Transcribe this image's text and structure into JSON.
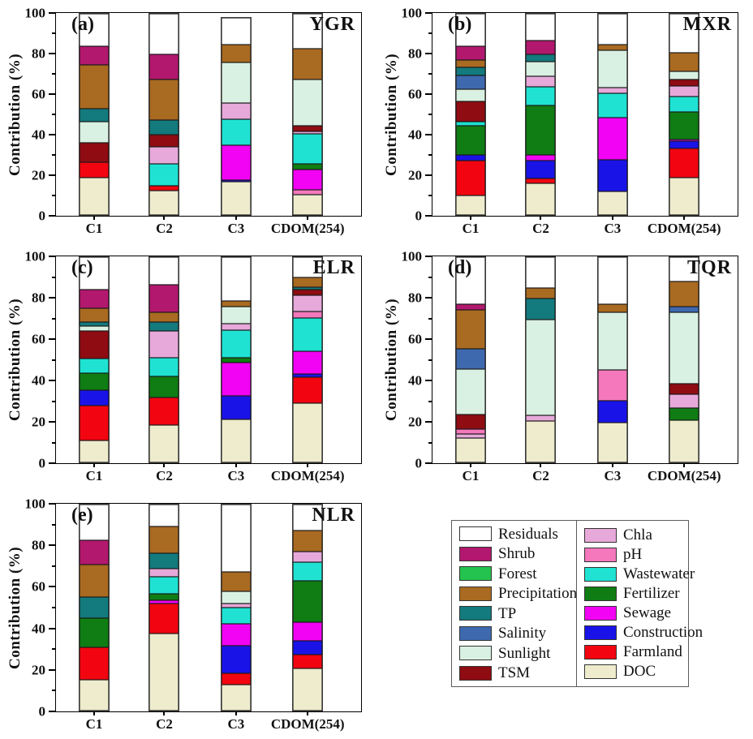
{
  "figure_title": "",
  "colors": {
    "Residuals": "#ffffff",
    "Shrub": "#b2186e",
    "Forest": "#24c24e",
    "Precipitation": "#a96a21",
    "TP": "#137a7d",
    "Salinity": "#3e69af",
    "Sunlight": "#d9f1e2",
    "TSM": "#8e0c12",
    "Chla": "#e7a9da",
    "pH": "#f478bb",
    "Wastewater": "#1fe2d2",
    "Fertilizer": "#0f7d13",
    "Sewage": "#f203f3",
    "Construction": "#1a13e8",
    "Farmland": "#f20510",
    "DOC": "#eeeccd"
  },
  "legend": {
    "left": [
      "Residuals",
      "Shrub",
      "Forest",
      "Precipitation",
      "TP",
      "Salinity",
      "Sunlight",
      "TSM"
    ],
    "right": [
      "Chla",
      "pH",
      "Wastewater",
      "Fertilizer",
      "Sewage",
      "Construction",
      "Farmland",
      "DOC"
    ]
  },
  "chart_data": [
    {
      "id": "a",
      "type": "bar",
      "stacked": true,
      "panel_label": "(a)",
      "region": "YGR",
      "ylabel": "Contribution (%)",
      "ylim": [
        0,
        100
      ],
      "yticks": [
        0,
        20,
        40,
        60,
        80,
        100
      ],
      "categories": [
        "C1",
        "C2",
        "C3",
        "CDOM(254)"
      ],
      "bars": [
        {
          "category": "C1",
          "segments": [
            [
              "DOC",
              18.5
            ],
            [
              "Farmland",
              7.5
            ],
            [
              "TSM",
              10
            ],
            [
              "Sunlight",
              10.5
            ],
            [
              "TP",
              6.5
            ],
            [
              "Precipitation",
              21.5
            ],
            [
              "Shrub",
              9.5
            ],
            [
              "Residuals",
              16
            ]
          ]
        },
        {
          "category": "C2",
          "segments": [
            [
              "DOC",
              12
            ],
            [
              "Farmland",
              2.5
            ],
            [
              "Wastewater",
              11
            ],
            [
              "Chla",
              8.5
            ],
            [
              "TSM",
              6
            ],
            [
              "TP",
              7
            ],
            [
              "Precipitation",
              20.5
            ],
            [
              "Shrub",
              12.5
            ],
            [
              "Residuals",
              20
            ]
          ]
        },
        {
          "category": "C3",
          "segments": [
            [
              "DOC",
              16.5
            ],
            [
              "Construction",
              1
            ],
            [
              "Sewage",
              17
            ],
            [
              "Wastewater",
              13
            ],
            [
              "Chla",
              8
            ],
            [
              "Sunlight",
              20.5
            ],
            [
              "Precipitation",
              8.5
            ],
            [
              "Residuals",
              13.5
            ]
          ]
        },
        {
          "category": "CDOM(254)",
          "segments": [
            [
              "DOC",
              10
            ],
            [
              "pH",
              2.5
            ],
            [
              "Sewage",
              10
            ],
            [
              "Fertilizer",
              3
            ],
            [
              "Wastewater",
              15
            ],
            [
              "Chla",
              1
            ],
            [
              "TSM",
              3
            ],
            [
              "Sunlight",
              23
            ],
            [
              "Precipitation",
              15
            ],
            [
              "Residuals",
              17.5
            ]
          ]
        }
      ]
    },
    {
      "id": "b",
      "type": "bar",
      "stacked": true,
      "panel_label": "(b)",
      "region": "MXR",
      "ylabel": "Contribution (%)",
      "ylim": [
        0,
        100
      ],
      "yticks": [
        0,
        20,
        40,
        60,
        80,
        100
      ],
      "categories": [
        "C1",
        "C2",
        "C3",
        "CDOM(254)"
      ],
      "bars": [
        {
          "category": "C1",
          "segments": [
            [
              "DOC",
              9.5
            ],
            [
              "Farmland",
              17.5
            ],
            [
              "Construction",
              3
            ],
            [
              "Fertilizer",
              14.5
            ],
            [
              "Wastewater",
              2
            ],
            [
              "TSM",
              10
            ],
            [
              "Sunlight",
              6
            ],
            [
              "Salinity",
              7
            ],
            [
              "TP",
              4
            ],
            [
              "Precipitation",
              3.5
            ],
            [
              "Shrub",
              7
            ],
            [
              "Residuals",
              16
            ]
          ]
        },
        {
          "category": "C2",
          "segments": [
            [
              "DOC",
              15.5
            ],
            [
              "Farmland",
              2.5
            ],
            [
              "Construction",
              9
            ],
            [
              "Sewage",
              3
            ],
            [
              "Fertilizer",
              24.5
            ],
            [
              "Wastewater",
              9
            ],
            [
              "Chla",
              5.5
            ],
            [
              "Sunlight",
              7
            ],
            [
              "TP",
              4
            ],
            [
              "Shrub",
              6.5
            ],
            [
              "Residuals",
              13.5
            ]
          ]
        },
        {
          "category": "C3",
          "segments": [
            [
              "DOC",
              11.5
            ],
            [
              "Construction",
              16
            ],
            [
              "Sewage",
              21
            ],
            [
              "Wastewater",
              12
            ],
            [
              "Chla",
              3
            ],
            [
              "Sunlight",
              18.5
            ],
            [
              "Precipitation",
              2.5
            ],
            [
              "Residuals",
              15.5
            ]
          ]
        },
        {
          "category": "CDOM(254)",
          "segments": [
            [
              "DOC",
              18.5
            ],
            [
              "Farmland",
              14.5
            ],
            [
              "Construction",
              3.5
            ],
            [
              "Sewage",
              1
            ],
            [
              "Fertilizer",
              13.5
            ],
            [
              "Wastewater",
              8
            ],
            [
              "Chla",
              5
            ],
            [
              "TSM",
              3.5
            ],
            [
              "Sunlight",
              4
            ],
            [
              "Precipitation",
              9
            ],
            [
              "Residuals",
              19.5
            ]
          ]
        }
      ]
    },
    {
      "id": "c",
      "type": "bar",
      "stacked": true,
      "panel_label": "(c)",
      "region": "ELR",
      "ylabel": "Contribution (%)",
      "ylim": [
        0,
        100
      ],
      "yticks": [
        0,
        20,
        40,
        60,
        80,
        100
      ],
      "categories": [
        "C1",
        "C2",
        "C3",
        "CDOM(254)"
      ],
      "bars": [
        {
          "category": "C1",
          "segments": [
            [
              "DOC",
              10.5
            ],
            [
              "Farmland",
              17
            ],
            [
              "Construction",
              7.5
            ],
            [
              "Fertilizer",
              8.5
            ],
            [
              "Wastewater",
              7
            ],
            [
              "TSM",
              13.5
            ],
            [
              "Sunlight",
              2.5
            ],
            [
              "TP",
              2
            ],
            [
              "Precipitation",
              6.5
            ],
            [
              "Shrub",
              9
            ],
            [
              "Residuals",
              16
            ]
          ]
        },
        {
          "category": "C2",
          "segments": [
            [
              "DOC",
              18
            ],
            [
              "Farmland",
              13.5
            ],
            [
              "Fertilizer",
              10.5
            ],
            [
              "Wastewater",
              9
            ],
            [
              "Chla",
              13
            ],
            [
              "TP",
              4.5
            ],
            [
              "Precipitation",
              4.5
            ],
            [
              "Shrub",
              13.5
            ],
            [
              "Residuals",
              13.5
            ]
          ]
        },
        {
          "category": "C3",
          "segments": [
            [
              "DOC",
              21
            ],
            [
              "Construction",
              11.5
            ],
            [
              "Sewage",
              16
            ],
            [
              "Fertilizer",
              2.5
            ],
            [
              "Wastewater",
              13.5
            ],
            [
              "Chla",
              3
            ],
            [
              "Sunlight",
              8.5
            ],
            [
              "Precipitation",
              2.5
            ],
            [
              "Residuals",
              21.5
            ]
          ]
        },
        {
          "category": "CDOM(254)",
          "segments": [
            [
              "DOC",
              29
            ],
            [
              "Farmland",
              12.5
            ],
            [
              "Construction",
              1.5
            ],
            [
              "Sewage",
              11
            ],
            [
              "Wastewater",
              16.5
            ],
            [
              "pH",
              3
            ],
            [
              "Chla",
              8
            ],
            [
              "TSM",
              2.5
            ],
            [
              "TP",
              1.5
            ],
            [
              "Precipitation",
              4.5
            ],
            [
              "Residuals",
              10
            ]
          ]
        }
      ]
    },
    {
      "id": "d",
      "type": "bar",
      "stacked": true,
      "panel_label": "(d)",
      "region": "TQR",
      "ylabel": "Contribution (%)",
      "ylim": [
        0,
        100
      ],
      "yticks": [
        0,
        20,
        40,
        60,
        80,
        100
      ],
      "categories": [
        "C1",
        "C2",
        "C3",
        "CDOM(254)"
      ],
      "bars": [
        {
          "category": "C1",
          "segments": [
            [
              "DOC",
              12
            ],
            [
              "Chla",
              2
            ],
            [
              "pH",
              2
            ],
            [
              "TSM",
              7.5
            ],
            [
              "Sunlight",
              22
            ],
            [
              "Salinity",
              10
            ],
            [
              "Precipitation",
              19
            ],
            [
              "Shrub",
              2.5
            ],
            [
              "Residuals",
              23
            ]
          ]
        },
        {
          "category": "C2",
          "segments": [
            [
              "DOC",
              20
            ],
            [
              "Chla",
              3
            ],
            [
              "Sunlight",
              46.5
            ],
            [
              "TP",
              10.5
            ],
            [
              "Precipitation",
              5
            ],
            [
              "Residuals",
              15
            ]
          ]
        },
        {
          "category": "C3",
          "segments": [
            [
              "DOC",
              19.5
            ],
            [
              "Construction",
              10.5
            ],
            [
              "pH",
              15
            ],
            [
              "Sunlight",
              28
            ],
            [
              "Precipitation",
              4
            ],
            [
              "Residuals",
              23
            ]
          ]
        },
        {
          "category": "CDOM(254)",
          "segments": [
            [
              "DOC",
              20.5
            ],
            [
              "Fertilizer",
              6
            ],
            [
              "Chla",
              6.5
            ],
            [
              "TSM",
              5.5
            ],
            [
              "Sunlight",
              34.5
            ],
            [
              "Salinity",
              3
            ],
            [
              "Precipitation",
              12
            ],
            [
              "Residuals",
              12
            ]
          ]
        }
      ]
    },
    {
      "id": "e",
      "type": "bar",
      "stacked": true,
      "panel_label": "(e)",
      "region": "NLR",
      "ylabel": "Contribution (%)",
      "ylim": [
        0,
        100
      ],
      "yticks": [
        0,
        20,
        40,
        60,
        80,
        100
      ],
      "categories": [
        "C1",
        "C2",
        "C3",
        "CDOM(254)"
      ],
      "bars": [
        {
          "category": "C1",
          "segments": [
            [
              "DOC",
              15
            ],
            [
              "Farmland",
              15.5
            ],
            [
              "Fertilizer",
              14.5
            ],
            [
              "TP",
              10
            ],
            [
              "Precipitation",
              16
            ],
            [
              "Shrub",
              11.5
            ],
            [
              "Residuals",
              17.5
            ]
          ]
        },
        {
          "category": "C2",
          "segments": [
            [
              "DOC",
              37.5
            ],
            [
              "Farmland",
              14.5
            ],
            [
              "Sewage",
              1.5
            ],
            [
              "Fertilizer",
              3
            ],
            [
              "Wastewater",
              8.5
            ],
            [
              "Chla",
              4
            ],
            [
              "TP",
              7.5
            ],
            [
              "Precipitation",
              13
            ],
            [
              "Residuals",
              10.5
            ]
          ]
        },
        {
          "category": "C3",
          "segments": [
            [
              "DOC",
              12.5
            ],
            [
              "Farmland",
              5.5
            ],
            [
              "Construction",
              13.5
            ],
            [
              "Sewage",
              10.5
            ],
            [
              "Wastewater",
              8
            ],
            [
              "Chla",
              2
            ],
            [
              "Sunlight",
              6
            ],
            [
              "Precipitation",
              9.5
            ],
            [
              "Residuals",
              32.5
            ]
          ]
        },
        {
          "category": "CDOM(254)",
          "segments": [
            [
              "DOC",
              20.5
            ],
            [
              "Farmland",
              6.5
            ],
            [
              "Construction",
              7
            ],
            [
              "Sewage",
              9
            ],
            [
              "Fertilizer",
              20
            ],
            [
              "Wastewater",
              9
            ],
            [
              "Chla",
              5
            ],
            [
              "Precipitation",
              10.5
            ],
            [
              "Residuals",
              12.5
            ]
          ]
        }
      ]
    }
  ]
}
